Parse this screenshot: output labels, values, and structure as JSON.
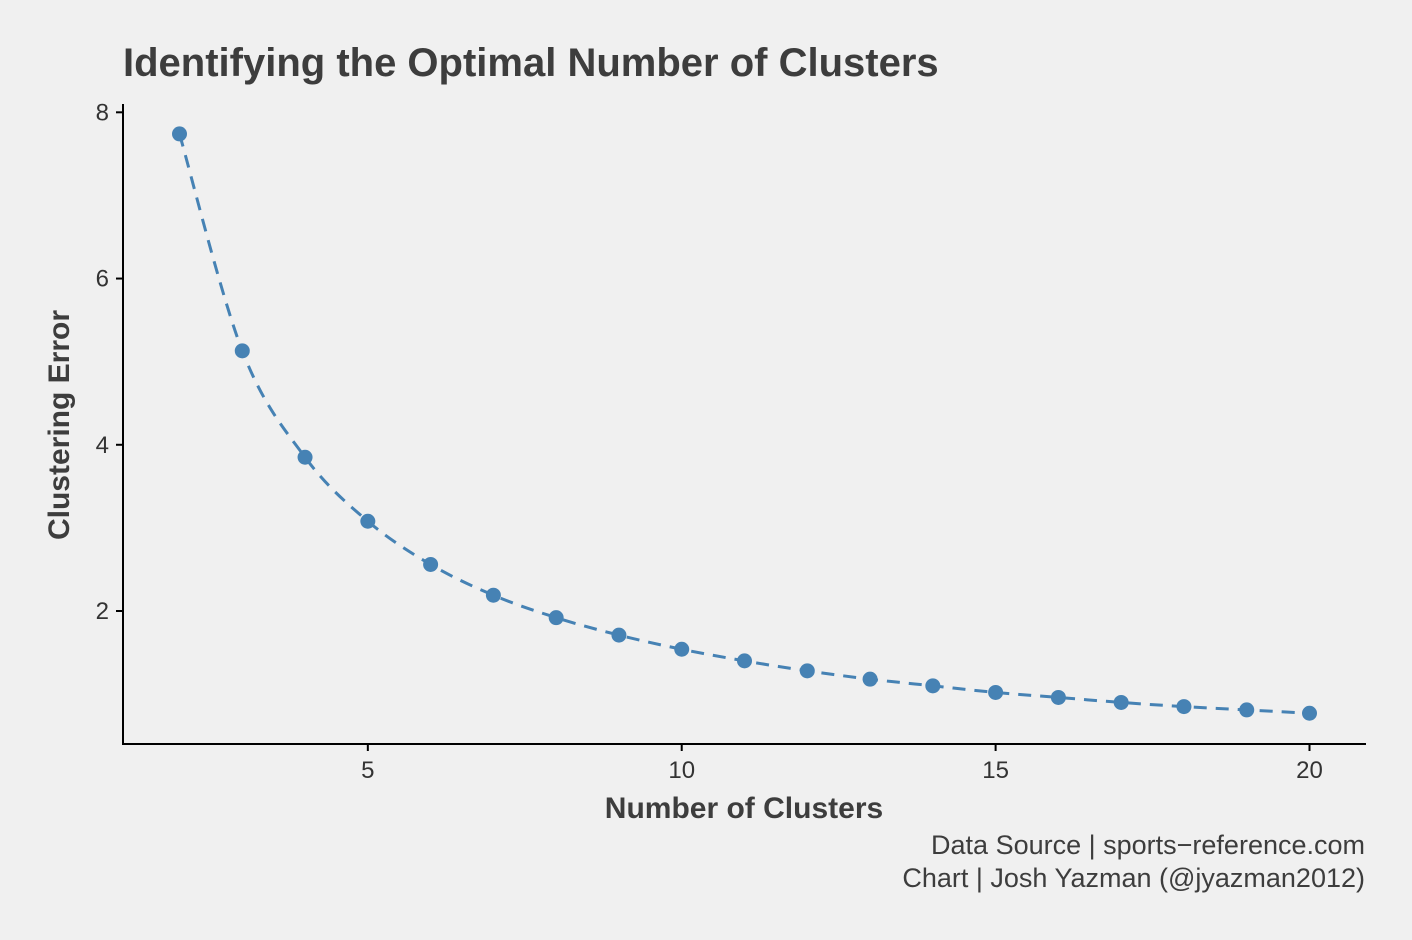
{
  "chart_data": {
    "type": "line",
    "title": "Identifying the Optimal Number of Clusters",
    "xlabel": "Number of Clusters",
    "ylabel": "Clustering Error",
    "xlim": [
      1.1,
      20.9
    ],
    "ylim": [
      0.4,
      8.1
    ],
    "x_ticks": [
      5,
      10,
      15,
      20
    ],
    "y_ticks": [
      2,
      4,
      6,
      8
    ],
    "grid": false,
    "line_style": "dashed",
    "markers": true,
    "series": [
      {
        "x": [
          2,
          3,
          4,
          5,
          6,
          7,
          8,
          9,
          10,
          11,
          12,
          13,
          14,
          15,
          16,
          17,
          18,
          19,
          20
        ],
        "values": [
          7.74,
          5.13,
          3.85,
          3.08,
          2.56,
          2.19,
          1.92,
          1.71,
          1.54,
          1.4,
          1.28,
          1.18,
          1.1,
          1.02,
          0.96,
          0.9,
          0.85,
          0.81,
          0.77
        ]
      }
    ],
    "captions": [
      "Data Source | sports−reference.com",
      "Chart | Josh Yazman (@jyazman2012)"
    ],
    "colors": {
      "series": "#4682b4",
      "axis": "#000000",
      "background": "#f0f0f0",
      "text": "#3d3d3d"
    }
  }
}
